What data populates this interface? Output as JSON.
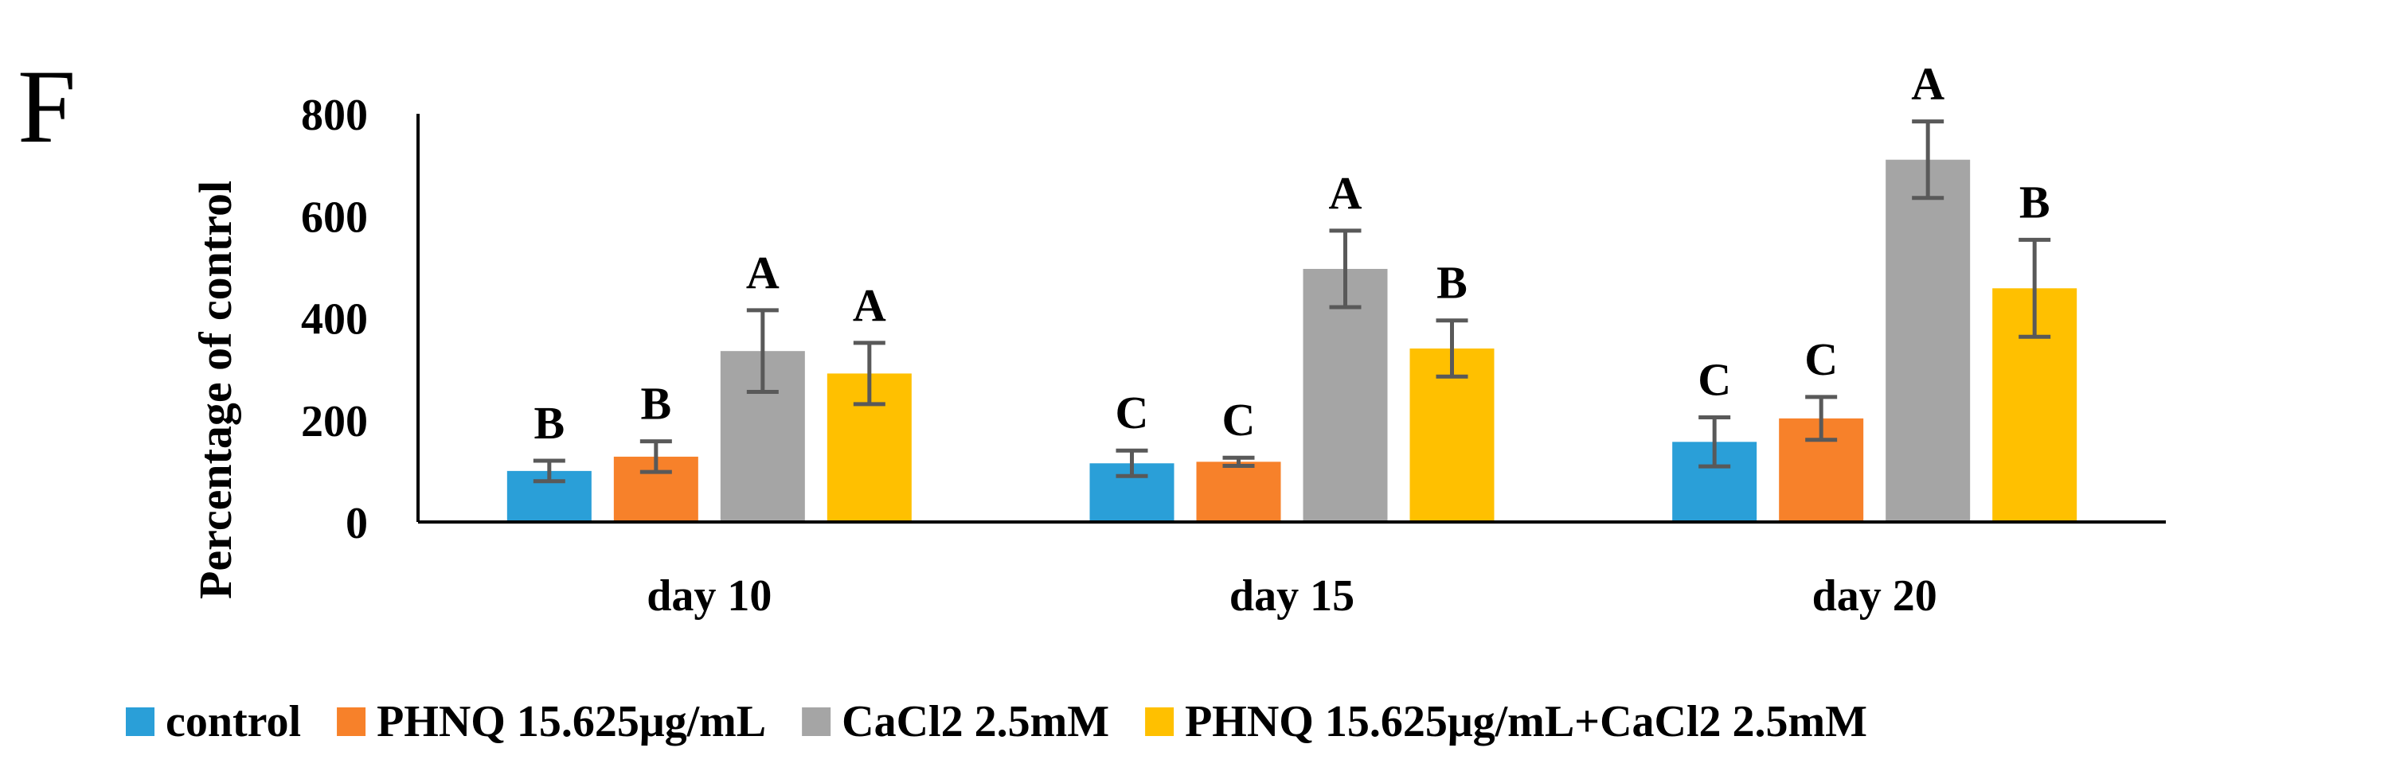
{
  "panel_label": "F",
  "chart_data": {
    "type": "bar",
    "title": "",
    "xlabel": "",
    "ylabel": "Percentage of control",
    "ylim": [
      0,
      800
    ],
    "yticks": [
      0,
      200,
      400,
      600,
      800
    ],
    "grid": false,
    "legend_position": "bottom",
    "categories": [
      "day 10",
      "day 15",
      "day 20"
    ],
    "series": [
      {
        "name": "control",
        "color": "#2a9fd8",
        "values": [
          100,
          115,
          157
        ],
        "errors": [
          20,
          25,
          48
        ],
        "letters": [
          "B",
          "C",
          "C"
        ]
      },
      {
        "name": "PHNQ 15.625μg/mL",
        "color": "#f7812a",
        "values": [
          128,
          118,
          203
        ],
        "errors": [
          30,
          8,
          42
        ],
        "letters": [
          "B",
          "C",
          "C"
        ]
      },
      {
        "name": "CaCl2 2.5mM",
        "color": "#a5a5a5",
        "values": [
          335,
          496,
          710
        ],
        "errors": [
          80,
          75,
          75
        ],
        "letters": [
          "A",
          "A",
          "A"
        ]
      },
      {
        "name": "PHNQ 15.625μg/mL+CaCl2 2.5mM",
        "color": "#ffc000",
        "values": [
          291,
          340,
          458
        ],
        "errors": [
          60,
          55,
          95
        ],
        "letters": [
          "A",
          "B",
          "B"
        ]
      }
    ]
  }
}
